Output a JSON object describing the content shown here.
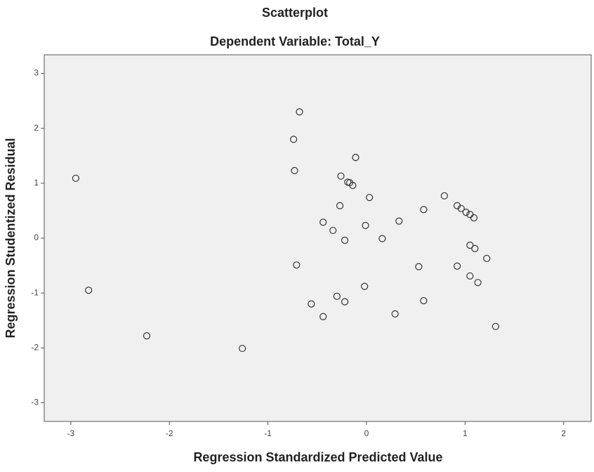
{
  "chart_data": {
    "type": "scatter",
    "title": "Scatterplot",
    "subtitle": "Dependent Variable: Total_Y",
    "x_label": "Regression Standardized Predicted Value",
    "y_label": "Regression Studentized Residual",
    "x": [
      -2.95,
      -2.82,
      -2.23,
      -1.26,
      -0.68,
      -0.74,
      -0.73,
      -0.71,
      -0.56,
      -0.44,
      -0.44,
      -0.34,
      -0.27,
      -0.26,
      -0.22,
      -0.19,
      -0.17,
      -0.14,
      -0.11,
      -0.3,
      -0.22,
      -0.02,
      -0.01,
      0.03,
      0.16,
      0.29,
      0.33,
      0.53,
      0.58,
      0.58,
      0.79,
      0.92,
      0.92,
      0.96,
      1.01,
      1.05,
      1.09,
      1.05,
      1.1,
      1.05,
      1.13,
      1.22,
      1.31
    ],
    "values": [
      1.09,
      -0.95,
      -1.78,
      -2.01,
      2.3,
      1.8,
      1.23,
      -0.49,
      -1.2,
      -1.43,
      0.29,
      0.14,
      0.59,
      1.13,
      -0.04,
      1.02,
      1.01,
      0.96,
      1.47,
      -1.06,
      -1.16,
      -0.88,
      0.23,
      0.74,
      -0.01,
      -1.38,
      0.31,
      -0.52,
      0.52,
      -1.14,
      0.77,
      0.59,
      -0.51,
      0.54,
      0.47,
      0.43,
      0.37,
      -0.13,
      -0.19,
      -0.69,
      -0.81,
      -0.37,
      -1.61
    ],
    "color": "#333333",
    "xlim": [
      -3.27,
      2.28
    ],
    "ylim": [
      -3.34,
      3.34
    ],
    "xticks": [
      -3,
      -2,
      -1,
      0,
      1,
      2
    ],
    "yticks": [
      -3,
      -2,
      -1,
      0,
      1,
      2,
      3
    ],
    "grid": false
  }
}
